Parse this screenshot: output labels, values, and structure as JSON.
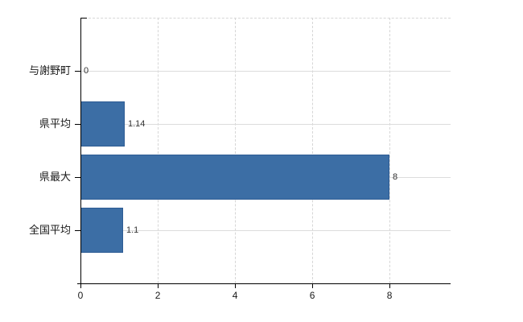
{
  "chart_data": {
    "type": "bar",
    "orientation": "horizontal",
    "title": "",
    "xlabel": "",
    "ylabel": "",
    "categories": [
      "与謝野町",
      "県平均",
      "県最大",
      "全国平均"
    ],
    "values": [
      0,
      1.14,
      8,
      1.1
    ],
    "value_labels": [
      "0",
      "1.14",
      "8",
      "1.1"
    ],
    "x_ticks": [
      0,
      2,
      4,
      6,
      8
    ],
    "x_tick_labels": [
      "0",
      "2",
      "4",
      "6",
      "8"
    ],
    "xlim": [
      0,
      9.58
    ],
    "grid": true,
    "legend": false,
    "colors": {
      "bar_fill": "#3c6ea5",
      "bar_border": "#2e5c94",
      "grid_line": "#dcdcdc",
      "axis_line": "#000000",
      "text": "#1a1a1a",
      "background": "#ffffff"
    }
  }
}
